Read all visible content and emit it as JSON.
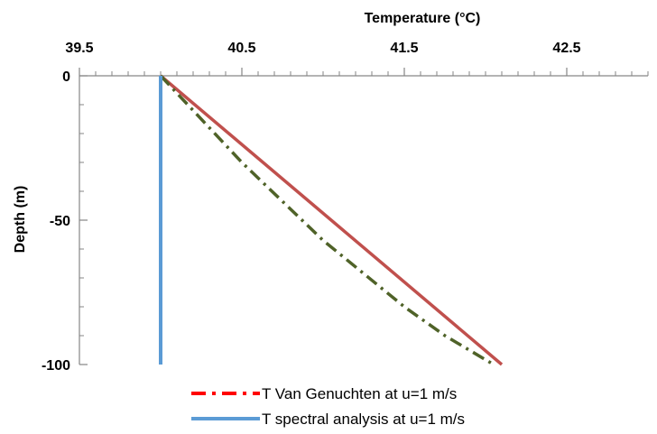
{
  "chart_data": {
    "type": "line",
    "orientation": "depth-profile",
    "xlabel": "Temperature (°C)",
    "ylabel": "Depth (m)",
    "x_axis_position": "top",
    "xlim": [
      39.5,
      43.0
    ],
    "ylim": [
      -100,
      0
    ],
    "x_ticks": [
      39.5,
      40.5,
      41.5,
      42.5
    ],
    "x_tick_labels": [
      "39.5",
      "40.5",
      "41.5",
      "42.5"
    ],
    "y_ticks": [
      0,
      -50,
      -100
    ],
    "y_tick_labels": [
      "0",
      "-50",
      "-100"
    ],
    "grid": false,
    "legend_position": "bottom",
    "series": [
      {
        "name": "T Van Genuchten at u=1 m/s",
        "color": "#ff0000",
        "style": "dash-dot",
        "in_legend": true,
        "x": [
          40.0,
          40.0
        ],
        "y": [
          0,
          -100
        ]
      },
      {
        "name": "T spectral analysis at u=1 m/s",
        "color": "#5b9bd5",
        "style": "solid",
        "in_legend": true,
        "x": [
          40.0,
          40.0
        ],
        "y": [
          0,
          -100
        ]
      },
      {
        "name": "",
        "color": "#4f6228",
        "style": "dash-dot",
        "in_legend": false,
        "x": [
          40.0,
          40.5,
          41.0,
          41.5,
          41.75,
          42.05
        ],
        "y": [
          0,
          -30,
          -57,
          -80,
          -90,
          -100
        ]
      },
      {
        "name": "",
        "color": "#c0504d",
        "style": "solid",
        "in_legend": false,
        "x": [
          40.0,
          42.1
        ],
        "y": [
          0,
          -100
        ]
      }
    ]
  }
}
